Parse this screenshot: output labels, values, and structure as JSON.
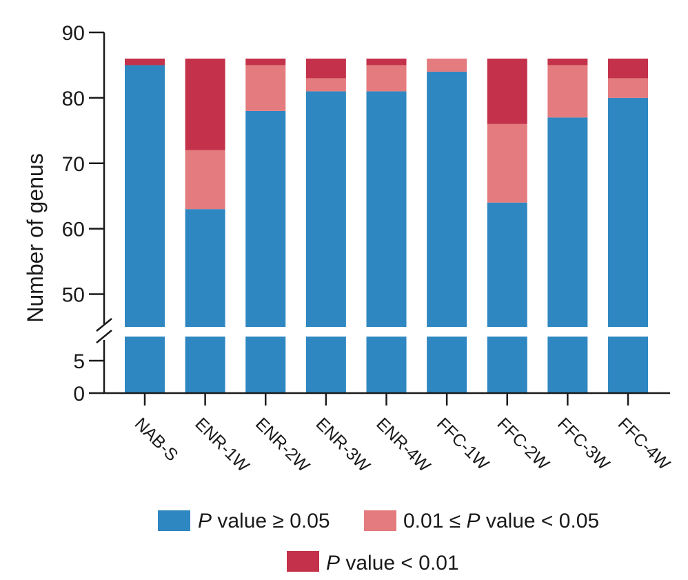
{
  "chart_data": {
    "type": "bar",
    "stacked": true,
    "broken_axis": true,
    "ylabel": "Number of genus",
    "xlabel": "",
    "categories": [
      "NAB-S",
      "ENR-1W",
      "ENR-2W",
      "ENR-3W",
      "ENR-4W",
      "FFC-1W",
      "FFC-2W",
      "FFC-3W",
      "FFC-4W"
    ],
    "series": [
      {
        "name": "P value ≥ 0.05",
        "legend_italic": "P",
        "legend_rest": " value ≥ 0.05",
        "color": "#2f87c1",
        "values": [
          85,
          63,
          78,
          81,
          81,
          84,
          64,
          77,
          80
        ]
      },
      {
        "name": "0.01 ≤ P value < 0.05",
        "legend_pre": "0.01 ≤ ",
        "legend_italic": "P",
        "legend_rest": " value < 0.05",
        "color": "#e47b7e",
        "values": [
          0,
          9,
          7,
          2,
          4,
          2,
          12,
          8,
          3
        ]
      },
      {
        "name": "P value < 0.01",
        "legend_italic": "P",
        "legend_rest": " value < 0.01",
        "color": "#c3324a",
        "values": [
          1,
          14,
          1,
          3,
          1,
          0,
          10,
          1,
          3
        ]
      }
    ],
    "yticks_lower": [
      "0",
      "5"
    ],
    "yticks_upper": [
      "50",
      "60",
      "70",
      "80",
      "90"
    ],
    "ylim_lower": [
      0,
      10
    ],
    "ylim_upper": [
      45,
      90
    ]
  }
}
